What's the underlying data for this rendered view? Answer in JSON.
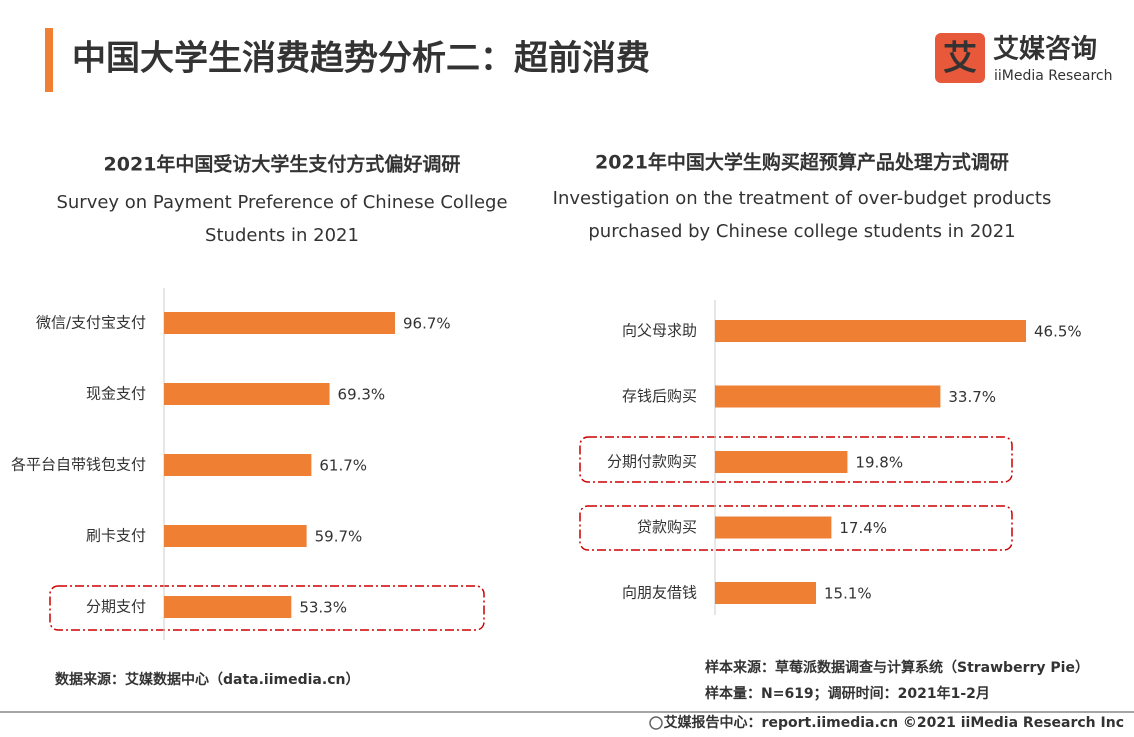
{
  "header": {
    "title": "中国大学生消费趋势分析二：超前消费",
    "logo_name": "艾媒咨询",
    "logo_sub": "iiMedia Research"
  },
  "chart_data": [
    {
      "type": "bar",
      "orientation": "horizontal",
      "title": "2021年中国受访大学生支付方式偏好调研",
      "subtitle": [
        "Survey on Payment Preference of Chinese College",
        "Students in 2021"
      ],
      "categories": [
        "微信/支付宝支付",
        "现金支付",
        "各平台自带钱包支付",
        "刷卡支付",
        "分期支付"
      ],
      "values": [
        96.7,
        69.3,
        61.7,
        59.7,
        53.3
      ],
      "value_labels": [
        "96.7%",
        "69.3%",
        "61.7%",
        "59.7%",
        "53.3%"
      ],
      "color": "#ee7f33",
      "source": "数据来源：艾媒数据中心（data.iimedia.cn）"
    },
    {
      "type": "bar",
      "orientation": "horizontal",
      "title": "2021年中国大学生购买超预算产品处理方式调研",
      "subtitle": [
        "Investigation on the treatment of over-budget products",
        "purchased by Chinese college students in 2021"
      ],
      "categories": [
        "向父母求助",
        "存钱后购买",
        "分期付款购买",
        "贷款购买",
        "向朋友借钱"
      ],
      "values": [
        46.5,
        33.7,
        19.8,
        17.4,
        15.1
      ],
      "value_labels": [
        "46.5%",
        "33.7%",
        "19.8%",
        "17.4%",
        "15.1%"
      ],
      "color": "#ee7f33",
      "source": [
        "样本来源：草莓派数据调查与计算系统（Strawberry Pie）",
        "样本量：N=619；调研时间：2021年1-2月"
      ]
    }
  ],
  "footer": "艾媒报告中心：report.iimedia.cn  ©2021  iiMedia Research  Inc"
}
